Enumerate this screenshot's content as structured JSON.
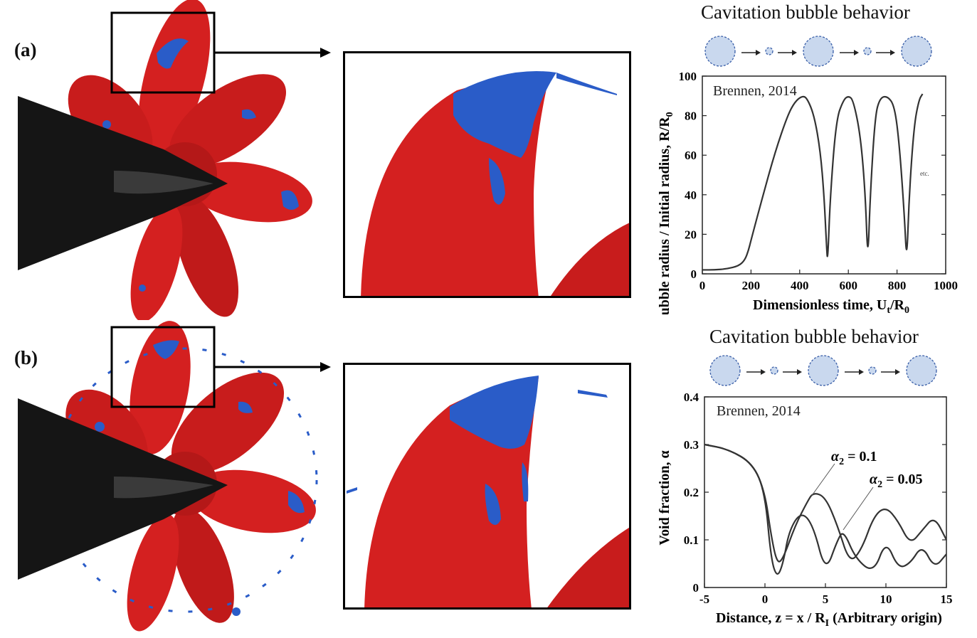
{
  "panels": [
    {
      "label": "(a)",
      "chart_title": "Cavitation bubble behavior",
      "chart_data": {
        "type": "line",
        "source_text": "Brennen, 2014",
        "xlabel": "Dimensionless time, U",
        "xlabel_sub": "t",
        "xlabel_tail": "/R",
        "xlabel_tail_sub": "0",
        "ylabel": "Bubble radius / Initial radius, R/R",
        "ylabel_sub": "0",
        "xlim": [
          0,
          1000
        ],
        "ylim": [
          0,
          100
        ],
        "x_ticks": [
          "0",
          "200",
          "400",
          "600",
          "800",
          "1000"
        ],
        "y_ticks": [
          "0",
          "20",
          "40",
          "60",
          "80",
          "100"
        ],
        "annotation": "etc.",
        "series": [
          {
            "x": [
              0,
              50,
              100,
              150,
              175,
              190,
              200,
              250,
              300,
              350,
              380,
              410,
              430,
              460,
              485,
              500,
              510,
              515,
              525,
              550,
              580,
              600,
              620,
              650,
              670,
              680,
              690,
              710,
              730,
              760,
              790,
              810,
              830,
              840,
              850,
              870,
              890,
              905
            ],
            "y": [
              2,
              2,
              2.5,
              4,
              7,
              12,
              17,
              40,
              62,
              80,
              87,
              90,
              89,
              80,
              62,
              40,
              15,
              5,
              38,
              78,
              88,
              90,
              88,
              70,
              40,
              5,
              40,
              80,
              89,
              90,
              85,
              65,
              30,
              5,
              40,
              75,
              88,
              91
            ]
          }
        ]
      },
      "bubble_icons": [
        "large",
        "small",
        "large",
        "small",
        "large"
      ]
    },
    {
      "label": "(b)",
      "chart_title": "Cavitation bubble behavior",
      "chart_data": {
        "type": "line",
        "source_text": "Brennen, 2014",
        "xlabel": "Distance, z = x / R",
        "xlabel_sub": "I",
        "xlabel_tail": " (Arbitrary origin)",
        "ylabel": "Void fraction, α",
        "xlim": [
          -5,
          15
        ],
        "ylim": [
          0,
          0.4
        ],
        "x_ticks": [
          "-5",
          "0",
          "5",
          "10",
          "15"
        ],
        "y_ticks": [
          "0",
          "0.1",
          "0.2",
          "0.3",
          "0.4"
        ],
        "series": [
          {
            "name": "α2 = 0.1",
            "name_main": "α",
            "name_sub": "2",
            "name_tail": " = 0.1",
            "x": [
              -5,
              -3,
              -1,
              0,
              0.5,
              1,
              1.5,
              2.5,
              3.5,
              4,
              5,
              6,
              7,
              8,
              9,
              10,
              11,
              12,
              13,
              14,
              15
            ],
            "y": [
              0.3,
              0.29,
              0.26,
              0.2,
              0.11,
              0.05,
              0.06,
              0.13,
              0.18,
              0.2,
              0.19,
              0.13,
              0.05,
              0.08,
              0.15,
              0.17,
              0.14,
              0.09,
              0.12,
              0.15,
              0.1
            ]
          },
          {
            "name": "α2 = 0.05",
            "name_main": "α",
            "name_sub": "2",
            "name_tail": " = 0.05",
            "x": [
              -5,
              -3,
              -1,
              0,
              0.5,
              1,
              1.5,
              2,
              3,
              4,
              5,
              6,
              6.5,
              7.5,
              9,
              10,
              11,
              12,
              13,
              14,
              15
            ],
            "y": [
              0.3,
              0.29,
              0.26,
              0.2,
              0.06,
              0.02,
              0.05,
              0.12,
              0.16,
              0.13,
              0.03,
              0.1,
              0.12,
              0.06,
              0.03,
              0.1,
              0.04,
              0.05,
              0.09,
              0.04,
              0.07
            ]
          }
        ]
      },
      "bubble_icons": [
        "large",
        "small",
        "large",
        "small",
        "large"
      ]
    }
  ],
  "colors": {
    "propeller_red": "#d42020",
    "cavitation_blue": "#2a5cc8",
    "hub_black": "#151515",
    "bubble_fill": "#c9d8ee",
    "bubble_stroke": "#3a5fa8",
    "curve": "#333333"
  }
}
